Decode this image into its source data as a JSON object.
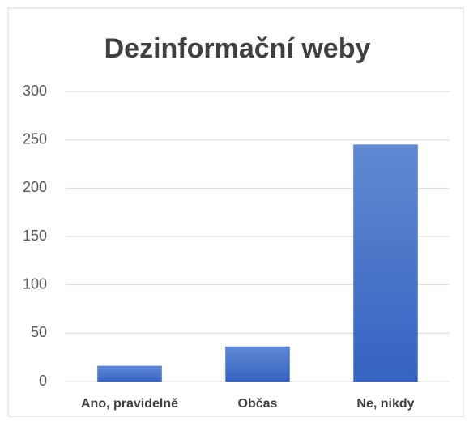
{
  "chart_data": {
    "type": "bar",
    "title": "Dezinformační weby",
    "categories": [
      "Ano, pravidelně",
      "Občas",
      "Ne, nikdy"
    ],
    "values": [
      16,
      36,
      245
    ],
    "color": "#4472c4",
    "ylim": [
      0,
      300
    ],
    "yticks": [
      0,
      50,
      100,
      150,
      200,
      250,
      300
    ],
    "grid": true
  }
}
